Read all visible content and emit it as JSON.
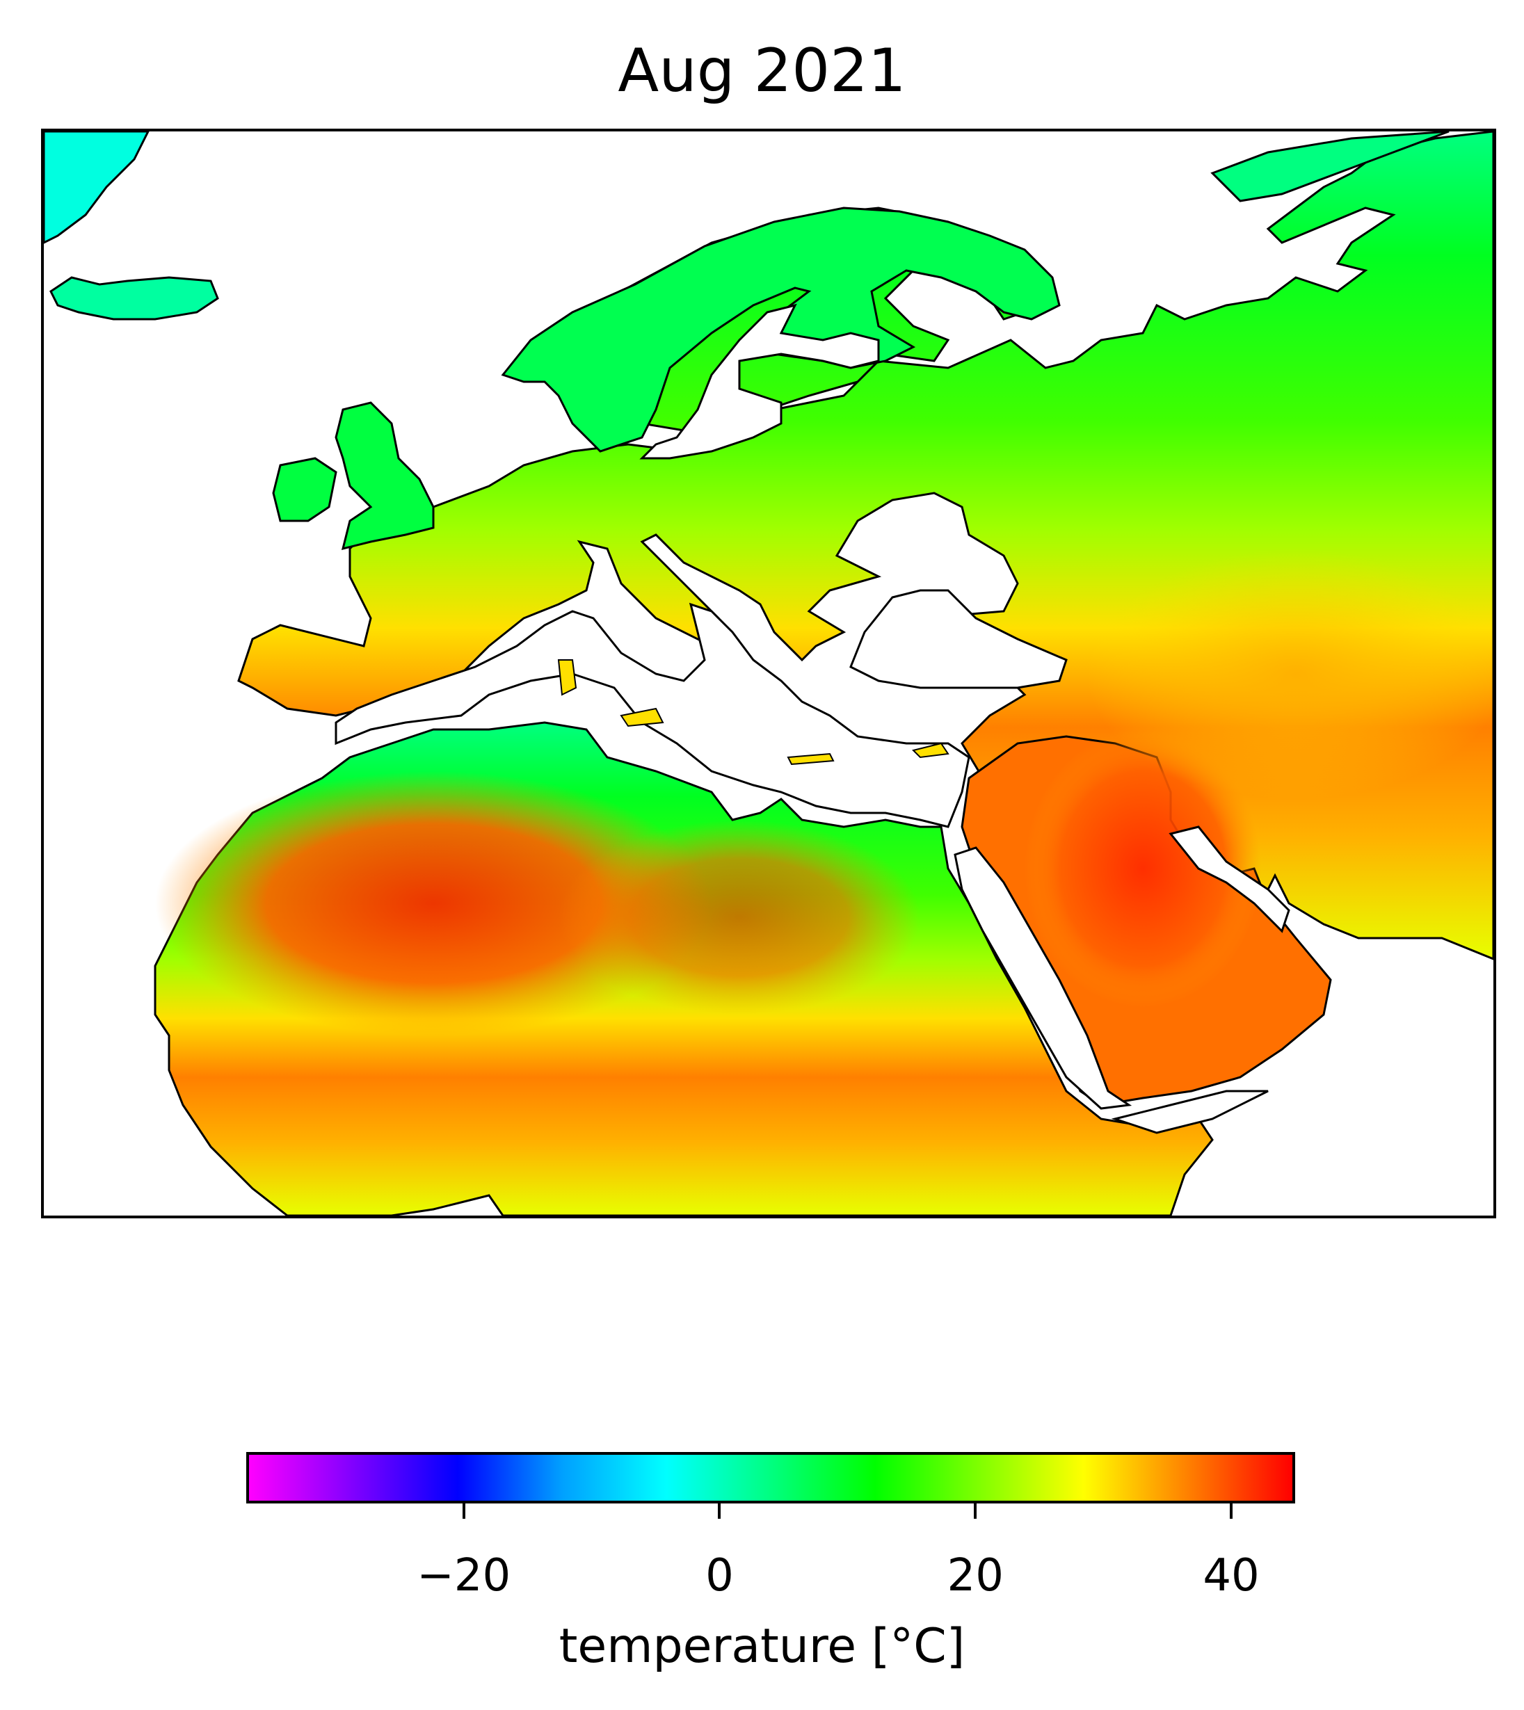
{
  "map": {
    "title": "Aug 2021",
    "regions": [
      "Europe",
      "North Africa",
      "Middle East"
    ]
  },
  "colorbar": {
    "label": "temperature [°C]",
    "min": -37,
    "max": 45,
    "ticks": [
      {
        "value": -20,
        "label": "−20"
      },
      {
        "value": 0,
        "label": "0"
      },
      {
        "value": 20,
        "label": "20"
      },
      {
        "value": 40,
        "label": "40"
      }
    ],
    "colormap": [
      "#ff00ff",
      "#8000ff",
      "#0000ff",
      "#00a0ff",
      "#00ffff",
      "#00ff80",
      "#00ff00",
      "#80ff00",
      "#ffff00",
      "#ff8000",
      "#ff0000"
    ]
  },
  "colors": {
    "cold": "#00e0ff",
    "cool": "#00ff40",
    "mild": "#80ff00",
    "warm": "#ffff00",
    "hot": "#ff9000",
    "very_hot": "#ff2000",
    "coast": "#000000"
  }
}
